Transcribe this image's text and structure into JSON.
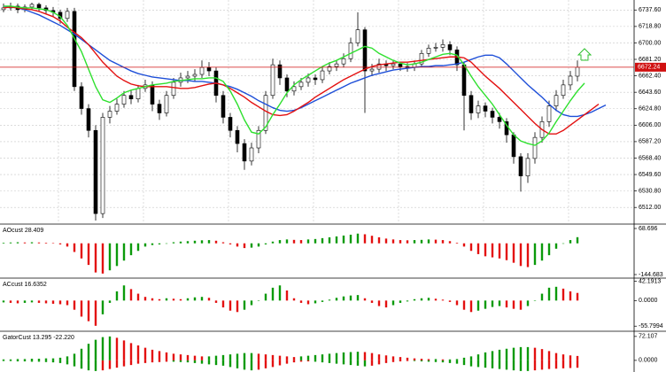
{
  "chart_data": [
    {
      "type": "candlestick",
      "open": [
        6738,
        6740,
        6742,
        6738,
        6741,
        6744,
        6740,
        6737,
        6735,
        6728,
        6736,
        6650,
        6625,
        6600,
        6505,
        6615,
        6622,
        6630,
        6640,
        6636,
        6648,
        6652,
        6630,
        6620,
        6640,
        6655,
        6660,
        6662,
        6664,
        6672,
        6668,
        6640,
        6615,
        6600,
        6585,
        6565,
        6580,
        6600,
        6640,
        6675,
        6660,
        6645,
        6650,
        6655,
        6660,
        6658,
        6668,
        6673,
        6676,
        6682,
        6700,
        6715,
        6668,
        6670,
        6676,
        6674,
        6676,
        6673,
        6672,
        6676,
        6688,
        6694,
        6695,
        6698,
        6692,
        6675,
        6640,
        6620,
        6628,
        6622,
        6615,
        6610,
        6595,
        6570,
        6548,
        6568,
        6592,
        6610,
        6628,
        6640,
        6652,
        6662,
        null,
        null,
        null,
        null
      ],
      "high": [
        6745,
        6746,
        6745,
        6744,
        6746,
        6746,
        6743,
        6741,
        6738,
        6740,
        6740,
        6655,
        6630,
        6606,
        6620,
        6628,
        6636,
        6645,
        6646,
        6652,
        6658,
        6656,
        6635,
        6645,
        6660,
        6666,
        6668,
        6670,
        6680,
        6678,
        6672,
        6645,
        6620,
        6605,
        6590,
        6586,
        6605,
        6645,
        6682,
        6680,
        6664,
        6656,
        6660,
        6665,
        6664,
        6672,
        6678,
        6680,
        6688,
        6706,
        6735,
        6718,
        6676,
        6682,
        6680,
        6680,
        6678,
        6677,
        6680,
        6692,
        6698,
        6700,
        6704,
        6702,
        6696,
        6678,
        6645,
        6634,
        6632,
        6626,
        6620,
        6614,
        6598,
        6574,
        6574,
        6598,
        6616,
        6634,
        6646,
        6658,
        6668,
        6680,
        null,
        null,
        null,
        null
      ],
      "low": [
        6735,
        6737,
        6734,
        6735,
        6738,
        6736,
        6733,
        6730,
        6722,
        6724,
        6645,
        6618,
        6592,
        6497,
        6500,
        6608,
        6618,
        6626,
        6630,
        6632,
        6644,
        6622,
        6612,
        6616,
        6636,
        6650,
        6654,
        6656,
        6660,
        6662,
        6632,
        6608,
        6592,
        6575,
        6555,
        6560,
        6574,
        6596,
        6636,
        6652,
        6638,
        6640,
        6646,
        6650,
        6652,
        6654,
        6664,
        6668,
        6672,
        6678,
        6696,
        6620,
        6662,
        6666,
        6668,
        6670,
        6668,
        6667,
        6668,
        6672,
        6684,
        6690,
        6690,
        6686,
        6668,
        6600,
        6612,
        6614,
        6615,
        6608,
        6602,
        6586,
        6562,
        6530,
        6540,
        6562,
        6586,
        6604,
        6622,
        6636,
        6646,
        6656,
        null,
        null,
        null,
        null
      ],
      "close": [
        6740,
        6742,
        6738,
        6741,
        6744,
        6740,
        6737,
        6735,
        6728,
        6736,
        6650,
        6625,
        6600,
        6505,
        6615,
        6622,
        6630,
        6640,
        6636,
        6648,
        6652,
        6630,
        6620,
        6640,
        6655,
        6660,
        6662,
        6664,
        6672,
        6668,
        6640,
        6615,
        6600,
        6585,
        6565,
        6580,
        6600,
        6640,
        6675,
        6660,
        6645,
        6650,
        6655,
        6660,
        6658,
        6668,
        6673,
        6676,
        6682,
        6700,
        6715,
        6668,
        6670,
        6676,
        6674,
        6676,
        6673,
        6672,
        6676,
        6688,
        6694,
        6695,
        6698,
        6692,
        6675,
        6640,
        6620,
        6628,
        6622,
        6615,
        6610,
        6595,
        6570,
        6548,
        6568,
        6592,
        6610,
        6628,
        6640,
        6652,
        6662,
        6672.24,
        null,
        null,
        null,
        null
      ],
      "bull_color": "#ffffff",
      "bear_color": "#000000",
      "lines": [
        {
          "color": "#1e4fd8",
          "values": [
            6742,
            6741,
            6740,
            6738,
            6735,
            6732,
            6728,
            6724,
            6720,
            6715,
            6710,
            6704,
            6698,
            6692,
            6686,
            6680,
            6676,
            6672,
            6668,
            6665,
            6663,
            6661,
            6660,
            6659,
            6658,
            6657,
            6657,
            6656,
            6656,
            6655,
            6654,
            6652,
            6650,
            6647,
            6643,
            6639,
            6634,
            6630,
            6626,
            6623,
            6622,
            6623,
            6626,
            6630,
            6634,
            6638,
            6642,
            6646,
            6650,
            6654,
            6657,
            6660,
            6663,
            6665,
            6667,
            6669,
            6670,
            6671,
            6672,
            6673,
            6673,
            6674,
            6674,
            6675,
            6676,
            6678,
            6681,
            6684,
            6686,
            6686,
            6683,
            6676,
            6668,
            6660,
            6652,
            6645,
            6638,
            6630,
            6623,
            6618,
            6616,
            6616,
            6618,
            6621,
            6625,
            6629
          ]
        },
        {
          "color": "#e31010",
          "values": [
            6740,
            6741,
            6740,
            6739,
            6738,
            6736,
            6733,
            6730,
            6725,
            6718,
            6712,
            6706,
            6698,
            6688,
            6678,
            6670,
            6662,
            6657,
            6653,
            6651,
            6650,
            6650,
            6650,
            6650,
            6649,
            6648,
            6648,
            6649,
            6651,
            6653,
            6654,
            6652,
            6648,
            6643,
            6638,
            6632,
            6627,
            6622,
            6618,
            6617,
            6618,
            6622,
            6627,
            6632,
            6638,
            6643,
            6648,
            6653,
            6658,
            6662,
            6666,
            6670,
            6673,
            6675,
            6676,
            6677,
            6678,
            6678,
            6679,
            6680,
            6681,
            6682,
            6683,
            6684,
            6684,
            6683,
            6678,
            6670,
            6662,
            6655,
            6648,
            6640,
            6632,
            6624,
            6616,
            6608,
            6601,
            6596,
            6596,
            6600,
            6606,
            6612,
            6618,
            6624,
            6630,
            null
          ]
        },
        {
          "color": "#2ee02e",
          "values": [
            6742,
            6742,
            6741,
            6740,
            6740,
            6739,
            6738,
            6735,
            6730,
            6720,
            6705,
            6690,
            6670,
            6650,
            6635,
            6632,
            6637,
            6643,
            6646,
            6648,
            6650,
            6652,
            6653,
            6654,
            6656,
            6657,
            6658,
            6659,
            6659,
            6660,
            6660,
            6656,
            6645,
            6630,
            6612,
            6598,
            6596,
            6604,
            6618,
            6630,
            6643,
            6652,
            6658,
            6663,
            6668,
            6673,
            6677,
            6680,
            6684,
            6688,
            6692,
            6696,
            6694,
            6688,
            6684,
            6680,
            6677,
            6675,
            6676,
            6678,
            6681,
            6684,
            6687,
            6688,
            6686,
            6675,
            6662,
            6650,
            6640,
            6630,
            6618,
            6606,
            6595,
            6588,
            6585,
            6583,
            6588,
            6597,
            6610,
            6622,
            6634,
            6645,
            6654,
            null,
            null,
            null
          ]
        }
      ],
      "current_price": {
        "value": 6672.24,
        "label": "6672.24"
      },
      "current_color": "#d01010",
      "ylim": [
        6494,
        6747
      ],
      "yticks": [
        {
          "value": 6737.6,
          "label": "6737.60"
        },
        {
          "value": 6718.8,
          "label": "6718.80"
        },
        {
          "value": 6700,
          "label": "6700.00"
        },
        {
          "value": 6681.2,
          "label": "6681.20"
        },
        {
          "value": 6662.4,
          "label": "6662.40"
        },
        {
          "value": 6643.6,
          "label": "6643.60"
        },
        {
          "value": 6624.8,
          "label": "6624.80"
        },
        {
          "value": 6606,
          "label": "6606.00"
        },
        {
          "value": 6587.2,
          "label": "6587.20"
        },
        {
          "value": 6568.4,
          "label": "6568.40"
        },
        {
          "value": 6549.6,
          "label": "6549.60"
        },
        {
          "value": 6530.8,
          "label": "6530.80"
        },
        {
          "value": 6512,
          "label": "6512.00"
        }
      ],
      "grid": true
    },
    {
      "type": "histogram",
      "title": "AOcust 28.409",
      "values": [
        3,
        4,
        5,
        4,
        5,
        4,
        3,
        1,
        -5,
        -15,
        -40,
        -70,
        -100,
        -135,
        -140,
        -125,
        -105,
        -80,
        -55,
        -35,
        -15,
        -8,
        -5,
        0,
        5,
        8,
        10,
        12,
        14,
        15,
        12,
        5,
        -5,
        -15,
        -22,
        -20,
        -15,
        -5,
        8,
        15,
        18,
        16,
        15,
        18,
        20,
        24,
        28,
        32,
        36,
        40,
        45,
        42,
        35,
        28,
        22,
        18,
        15,
        14,
        15,
        16,
        18,
        17,
        15,
        10,
        3,
        -15,
        -35,
        -50,
        -60,
        -65,
        -70,
        -78,
        -90,
        -105,
        -110,
        -100,
        -80,
        -55,
        -25,
        0,
        15,
        28.409
      ],
      "up_color": "#0a9a0a",
      "down_color": "#e31010",
      "ylim": [
        -157,
        85
      ],
      "yticks": [
        68.696,
        -144.683
      ]
    },
    {
      "type": "histogram",
      "title": "ACcust 16.6352",
      "values": [
        -4,
        -5,
        -6,
        -5,
        -4,
        -5,
        -6,
        -7,
        -8,
        -10,
        -20,
        -35,
        -45,
        -55,
        -30,
        -5,
        20,
        33,
        25,
        15,
        8,
        5,
        3,
        5,
        4,
        3,
        5,
        7,
        8,
        6,
        -5,
        -15,
        -22,
        -25,
        -20,
        -10,
        0,
        15,
        28,
        33,
        22,
        5,
        -5,
        -8,
        -6,
        -3,
        2,
        6,
        9,
        11,
        12,
        5,
        -5,
        -12,
        -15,
        -10,
        -5,
        -2,
        3,
        5,
        6,
        4,
        2,
        -3,
        -10,
        -20,
        -25,
        -22,
        -18,
        -14,
        -12,
        -15,
        -18,
        -20,
        -12,
        0,
        15,
        28,
        30,
        26,
        20,
        16.6352
      ],
      "up_color": "#0a9a0a",
      "down_color": "#e31010",
      "ylim": [
        -65,
        47
      ],
      "yticks": [
        42.1913,
        {
          "value": 0,
          "label": "0.0000"
        },
        -55.7994
      ]
    },
    {
      "type": "gator",
      "title": "GatorCust 13.295 -22.220",
      "series": [
        {
          "values": [
            3,
            3,
            4,
            4,
            5,
            5,
            6,
            6,
            8,
            12,
            20,
            35,
            50,
            62,
            70,
            72,
            68,
            60,
            52,
            45,
            38,
            32,
            28,
            24,
            20,
            18,
            16,
            14,
            12,
            12,
            14,
            16,
            18,
            20,
            22,
            22,
            20,
            18,
            16,
            14,
            12,
            10,
            12,
            14,
            16,
            18,
            20,
            22,
            24,
            25,
            26,
            25,
            22,
            18,
            15,
            12,
            10,
            8,
            6,
            5,
            4,
            4,
            3,
            3,
            4,
            8,
            12,
            18,
            24,
            28,
            32,
            35,
            38,
            40,
            40,
            38,
            34,
            28,
            22,
            18,
            15,
            13.295
          ]
        },
        {
          "values": [
            -2,
            -2,
            -3,
            -3,
            -4,
            -4,
            -5,
            -6,
            -8,
            -12,
            -18,
            -25,
            -30,
            -32,
            -30,
            -26,
            -22,
            -18,
            -14,
            -10,
            -8,
            -6,
            -5,
            -4,
            -4,
            -5,
            -6,
            -8,
            -10,
            -12,
            -14,
            -16,
            -20,
            -24,
            -28,
            -30,
            -28,
            -24,
            -20,
            -15,
            -10,
            -6,
            -4,
            -3,
            -4,
            -6,
            -8,
            -10,
            -12,
            -14,
            -16,
            -18,
            -16,
            -12,
            -8,
            -5,
            -3,
            -2,
            -2,
            -3,
            -4,
            -5,
            -6,
            -8,
            -10,
            -14,
            -18,
            -20,
            -22,
            -24,
            -26,
            -28,
            -30,
            -32,
            -32,
            -30,
            -28,
            -26,
            -25,
            -24,
            -23,
            -22.22
          ]
        }
      ],
      "up_color": "#0a9a0a",
      "down_color": "#e31010",
      "ylim": [
        -35,
        85
      ],
      "yticks": [
        72.107,
        {
          "value": 0,
          "label": "0.0000"
        }
      ]
    }
  ]
}
